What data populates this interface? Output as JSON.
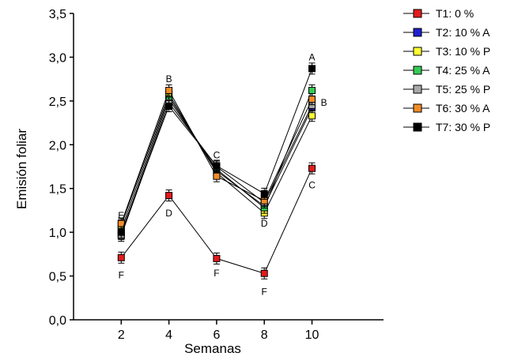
{
  "chart_data": {
    "type": "line",
    "xlabel": "Semanas",
    "ylabel": "Emisión foliar",
    "ylim": [
      0,
      3.5
    ],
    "xlim": [
      0,
      13
    ],
    "grid": false,
    "legend_position": "top-right",
    "x": [
      2,
      4,
      6,
      8,
      10
    ],
    "x_tick_labels": [
      "2",
      "4",
      "6",
      "8",
      "10"
    ],
    "y_ticks": [
      0,
      0.5,
      1.0,
      1.5,
      2.0,
      2.5,
      3.0,
      3.5
    ],
    "y_tick_labels": [
      "0,0",
      "0,5",
      "1,0",
      "1,5",
      "2,0",
      "2,5",
      "3,0",
      "3,5"
    ],
    "series": [
      {
        "name": "T1: 0 %",
        "color": "#e31a1c",
        "values": [
          0.71,
          1.42,
          0.7,
          0.53,
          1.73
        ]
      },
      {
        "name": "T2: 10 % A",
        "color": "#1f1fcf",
        "values": [
          1.03,
          2.55,
          1.7,
          1.3,
          2.42
        ]
      },
      {
        "name": "T3: 10 % P",
        "color": "#ffff33",
        "values": [
          1.08,
          2.58,
          1.68,
          1.22,
          2.33
        ]
      },
      {
        "name": "T4: 25 % A",
        "color": "#33cc55",
        "values": [
          0.98,
          2.52,
          1.72,
          1.28,
          2.62
        ]
      },
      {
        "name": "T5: 25 % P",
        "color": "#a9a9a9",
        "values": [
          0.96,
          2.48,
          1.75,
          1.34,
          2.45
        ]
      },
      {
        "name": "T6: 30 % A",
        "color": "#f28c28",
        "values": [
          1.1,
          2.62,
          1.64,
          1.36,
          2.52
        ]
      },
      {
        "name": "T7: 30 % P",
        "color": "#000000",
        "values": [
          1.0,
          2.44,
          1.76,
          1.44,
          2.87
        ]
      }
    ],
    "annotations": [
      {
        "text": "E",
        "x": 2,
        "y": 1.19
      },
      {
        "text": "F",
        "x": 2,
        "y": 0.51
      },
      {
        "text": "B",
        "x": 4,
        "y": 2.75
      },
      {
        "text": "D",
        "x": 4,
        "y": 1.22
      },
      {
        "text": "C",
        "x": 6,
        "y": 1.88
      },
      {
        "text": "F",
        "x": 6,
        "y": 0.53
      },
      {
        "text": "D",
        "x": 8,
        "y": 1.1
      },
      {
        "text": "F",
        "x": 8,
        "y": 0.32
      },
      {
        "text": "A",
        "x": 10,
        "y": 3.0
      },
      {
        "text": "B",
        "x": 10.5,
        "y": 2.48
      },
      {
        "text": "C",
        "x": 10,
        "y": 1.54
      }
    ]
  }
}
